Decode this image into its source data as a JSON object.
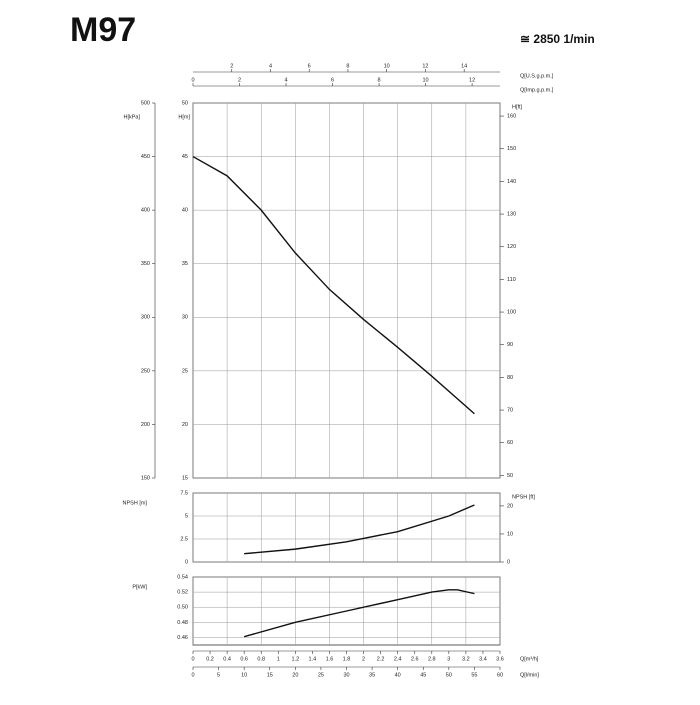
{
  "header": {
    "title": "M97",
    "speed": "≅ 2850 1/min"
  },
  "chart_data": [
    {
      "type": "line",
      "color": "#111111",
      "grid": true,
      "x": [
        0,
        0.4,
        0.8,
        1.2,
        1.6,
        2.0,
        2.4,
        2.8,
        3.3
      ],
      "values": [
        45,
        43.2,
        40,
        36,
        32.6,
        29.8,
        27.2,
        24.5,
        21
      ],
      "xlim": [
        0,
        3.6
      ],
      "xticks": [
        0,
        0.4,
        0.8,
        1.2,
        1.6,
        2.0,
        2.4,
        2.8,
        3.2,
        3.6
      ],
      "ylabel": "H[m]",
      "ylim": [
        15,
        50
      ],
      "yticks": [
        15,
        20,
        25,
        30,
        35,
        40,
        45,
        50
      ],
      "y2label": "H[ft]",
      "y2lim": [
        49.2,
        164
      ],
      "y2ticks": [
        50,
        60,
        70,
        80,
        90,
        100,
        110,
        120,
        130,
        140,
        150,
        160
      ],
      "extra_axes": [
        {
          "side": "left",
          "label": "H[kPa]",
          "lim": [
            150,
            500
          ],
          "ticks": [
            150,
            200,
            250,
            300,
            350,
            400,
            450,
            500
          ]
        },
        {
          "side": "top",
          "label": "Q[U.S.g.p.m.]",
          "lim": [
            0,
            15.85
          ],
          "ticks": [
            2,
            4,
            6,
            8,
            10,
            12,
            14
          ]
        },
        {
          "side": "top",
          "label": "Q[Imp.g.p.m.]",
          "lim": [
            0,
            13.2
          ],
          "ticks": [
            0,
            2,
            4,
            6,
            8,
            10,
            12
          ]
        }
      ]
    },
    {
      "type": "line",
      "color": "#111111",
      "grid": true,
      "x": [
        0.6,
        1.2,
        1.8,
        2.4,
        3.0,
        3.3
      ],
      "values": [
        0.9,
        1.4,
        2.2,
        3.3,
        5,
        6.2
      ],
      "xlim": [
        0,
        3.6
      ],
      "xticks": [
        0,
        0.4,
        0.8,
        1.2,
        1.6,
        2.0,
        2.4,
        2.8,
        3.2,
        3.6
      ],
      "ylabel": "NPSH [m]",
      "ylim": [
        0,
        7.5
      ],
      "yticks": [
        0,
        2.5,
        5,
        7.5
      ],
      "y2label": "NPSH [ft]",
      "y2lim": [
        0,
        24.6
      ],
      "y2ticks": [
        0,
        10,
        20
      ]
    },
    {
      "type": "line",
      "color": "#111111",
      "grid": true,
      "x": [
        0.6,
        1.2,
        1.8,
        2.4,
        2.8,
        3.0,
        3.1,
        3.3
      ],
      "values": [
        0.461,
        0.48,
        0.495,
        0.51,
        0.52,
        0.523,
        0.523,
        0.518
      ],
      "xlim": [
        0,
        3.6
      ],
      "xticks": [
        0,
        0.4,
        0.8,
        1.2,
        1.6,
        2.0,
        2.4,
        2.8,
        3.2,
        3.6
      ],
      "ylabel": "P[kW]",
      "ylim": [
        0.45,
        0.54
      ],
      "yticks": [
        0.46,
        0.48,
        {
          "value": 0.5,
          "label": "0.50"
        },
        0.52,
        0.54
      ],
      "extra_axes": [
        {
          "side": "bottom",
          "label": "Q[m³/h]",
          "lim": [
            0,
            3.6
          ],
          "ticks": [
            0,
            0.2,
            0.4,
            0.6,
            0.8,
            1,
            1.2,
            1.4,
            1.6,
            1.8,
            2,
            2.2,
            2.4,
            2.6,
            2.8,
            3,
            3.2,
            3.4,
            3.6
          ]
        },
        {
          "side": "bottom",
          "label": "Q[l/min]",
          "lim": [
            0,
            60
          ],
          "ticks": [
            0,
            5,
            10,
            15,
            20,
            25,
            30,
            35,
            40,
            45,
            50,
            55,
            60
          ]
        }
      ]
    }
  ]
}
